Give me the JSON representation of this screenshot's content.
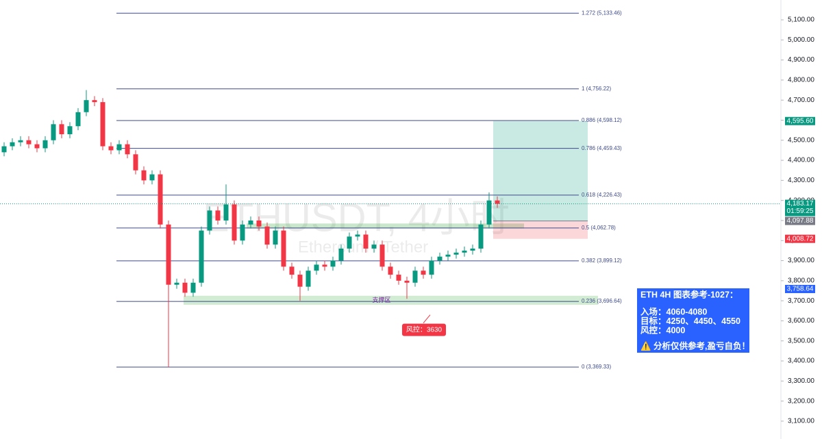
{
  "chart_data": {
    "type": "candlestick",
    "watermark": "ETHUSDT, 4小时",
    "watermark_subtitle": "Ethereum / Tether",
    "ylim": [
      3011,
      5199
    ],
    "yticks": [
      {
        "value": 3100,
        "label": "3,100.00"
      },
      {
        "value": 3200,
        "label": "3,200.00"
      },
      {
        "value": 3300,
        "label": "3,300.00"
      },
      {
        "value": 3400,
        "label": "3,400.00"
      },
      {
        "value": 3500,
        "label": "3,500.00"
      },
      {
        "value": 3600,
        "label": "3,600.00"
      },
      {
        "value": 3700,
        "label": "3,700.00"
      },
      {
        "value": 3800,
        "label": "3,800.00"
      },
      {
        "value": 3900,
        "label": "3,900.00"
      },
      {
        "value": 4000,
        "label": "4,000.00"
      },
      {
        "value": 4100,
        "label": "4,100.00"
      },
      {
        "value": 4200,
        "label": "4,200.00"
      },
      {
        "value": 4300,
        "label": "4,300.00"
      },
      {
        "value": 4400,
        "label": "4,400.00"
      },
      {
        "value": 4500,
        "label": "4,500.00"
      },
      {
        "value": 4600,
        "label": "4,600.00"
      },
      {
        "value": 4700,
        "label": "4,700.00"
      },
      {
        "value": 4800,
        "label": "4,800.00"
      },
      {
        "value": 4900,
        "label": "4,900.00"
      },
      {
        "value": 5000,
        "label": "5,000.00"
      },
      {
        "value": 5100,
        "label": "5,100.00"
      }
    ],
    "up_color": "#089981",
    "down_color": "#f23645",
    "open": [
      4440,
      4470,
      4490,
      4500,
      4480,
      4460,
      4500,
      4580,
      4530,
      4570,
      4640,
      4700,
      4690,
      4470,
      4450,
      4480,
      4430,
      4350,
      4300,
      4330,
      4080,
      3780,
      3790,
      3740,
      3790,
      4050,
      4150,
      4100,
      4180,
      4000,
      4080,
      4100,
      4070,
      3980,
      4050,
      3870,
      3830,
      3770,
      3850,
      3880,
      3870,
      3900,
      3960,
      4020,
      4030,
      3960,
      3980,
      3870,
      3830,
      3800,
      3790,
      3850,
      3830,
      3900,
      3920,
      3930,
      3940,
      3950,
      3960,
      4080,
      4200
    ],
    "high": [
      4490,
      4510,
      4520,
      4520,
      4500,
      4520,
      4600,
      4600,
      4590,
      4660,
      4750,
      4720,
      4710,
      4490,
      4500,
      4500,
      4450,
      4370,
      4350,
      4350,
      4100,
      3810,
      3810,
      3810,
      4070,
      4170,
      4170,
      4280,
      4200,
      4100,
      4120,
      4120,
      4090,
      4070,
      4070,
      3890,
      3850,
      3870,
      3900,
      3900,
      3920,
      3980,
      4040,
      4050,
      4050,
      4000,
      4000,
      3890,
      3850,
      3820,
      3870,
      3870,
      3920,
      3940,
      3950,
      3960,
      3970,
      3980,
      4100,
      4240,
      4220
    ],
    "low": [
      4420,
      4450,
      4470,
      4460,
      4440,
      4440,
      4480,
      4510,
      4510,
      4550,
      4620,
      4670,
      4450,
      4430,
      4430,
      4410,
      4330,
      4280,
      4280,
      4060,
      3369,
      3760,
      3720,
      3720,
      3770,
      4030,
      4080,
      4080,
      3980,
      3980,
      4060,
      4050,
      3960,
      3960,
      3850,
      3810,
      3700,
      3750,
      3830,
      3850,
      3850,
      3880,
      3940,
      4000,
      3940,
      3940,
      3850,
      3810,
      3780,
      3710,
      3770,
      3810,
      3810,
      3880,
      3900,
      3910,
      3920,
      3930,
      3940,
      4060,
      4163
    ],
    "close": [
      4470,
      4490,
      4500,
      4480,
      4460,
      4500,
      4580,
      4530,
      4570,
      4640,
      4700,
      4690,
      4470,
      4450,
      4480,
      4430,
      4350,
      4300,
      4330,
      4080,
      3780,
      3790,
      3740,
      3790,
      4050,
      4150,
      4100,
      4180,
      4000,
      4080,
      4100,
      4070,
      3980,
      4050,
      3870,
      3830,
      3770,
      3850,
      3880,
      3870,
      3900,
      3960,
      4020,
      4030,
      3960,
      3980,
      3870,
      3830,
      3800,
      3790,
      3850,
      3830,
      3900,
      3920,
      3930,
      3940,
      3950,
      3960,
      4080,
      4200,
      4183.17
    ],
    "fib_levels": [
      {
        "value": 5133.46,
        "label": "1.272 (5,133.46)"
      },
      {
        "value": 4756.22,
        "label": "1 (4,756.22)"
      },
      {
        "value": 4598.12,
        "label": "0.886 (4,598.12)"
      },
      {
        "value": 4459.43,
        "label": "0.786 (4,459.43)"
      },
      {
        "value": 4226.43,
        "label": "0.618 (4,226.43)"
      },
      {
        "value": 4062.78,
        "label": "0.5 (4,062.78)"
      },
      {
        "value": 3899.12,
        "label": "0.382 (3,899.12)"
      },
      {
        "value": 3696.64,
        "label": "0.236 (3,696.64)"
      },
      {
        "value": 3369.33,
        "label": "0 (3,369.33)"
      }
    ],
    "fib_color": "#3d4a8a",
    "price_tags": [
      {
        "value": 4595.6,
        "label": "4,595.60",
        "color": "#089981"
      },
      {
        "value": 4183.17,
        "label": "4,183.17",
        "color": "#089981"
      },
      {
        "value": 4097.88,
        "label": "4,097.88",
        "color": "#787b86"
      },
      {
        "value": 4008.72,
        "label": "4,008.72",
        "color": "#f23645"
      },
      {
        "value": 3758.64,
        "label": "3,758.64",
        "color": "#2962ff"
      }
    ],
    "countdown": "01:59:25",
    "position": {
      "target": 4595.6,
      "entry": 4097.88,
      "stop": 4008.72
    },
    "support_zone": {
      "label": "支撑区",
      "low": 3680,
      "high": 3725
    },
    "entry_zone": {
      "low": 4060,
      "high": 4085
    },
    "risk_note": {
      "label": "风控：3630",
      "value": 3630
    },
    "info_box": {
      "title": "ETH 4H 图表参考-1027：",
      "lines": [
        "入场：4060-4080",
        "目标：4250、4450、4550",
        "风控：4000"
      ],
      "warning": "⚠️ 分析仅供参考,盈亏自负！"
    }
  }
}
